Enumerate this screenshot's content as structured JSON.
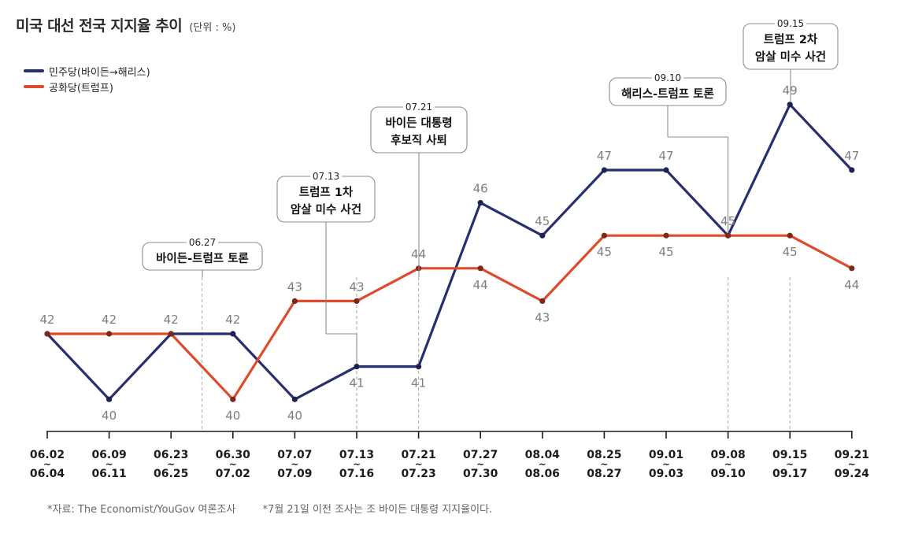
{
  "title": "미국 대선 전국 지지율 추이",
  "unit": "(단위 : %)",
  "legend": [
    {
      "label": "민주당(바이든→해리스)",
      "color": "#27306f"
    },
    {
      "label": "공화당(트럼프)",
      "color": "#dd4b2c"
    }
  ],
  "footer": {
    "source": "*자료: The Economist/YouGov 여론조사",
    "note": "*7월 21일 이전 조사는 조 바이든 대통령 지지율이다."
  },
  "chart_data": {
    "type": "line",
    "categories": [
      [
        "06.02",
        "06.04"
      ],
      [
        "06.09",
        "06.11"
      ],
      [
        "06.23",
        "06.25"
      ],
      [
        "06.30",
        "07.02"
      ],
      [
        "07.07",
        "07.09"
      ],
      [
        "07.13",
        "07.16"
      ],
      [
        "07.21",
        "07.23"
      ],
      [
        "07.27",
        "07.30"
      ],
      [
        "08.04",
        "08.06"
      ],
      [
        "08.25",
        "08.27"
      ],
      [
        "09.01",
        "09.03"
      ],
      [
        "09.08",
        "09.10"
      ],
      [
        "09.15",
        "09.17"
      ],
      [
        "09.21",
        "09.24"
      ]
    ],
    "series": [
      {
        "name": "민주당(바이든→해리스)",
        "color": "#27306f",
        "values": [
          42,
          40,
          42,
          42,
          40,
          41,
          41,
          46,
          45,
          47,
          47,
          45,
          49,
          47
        ]
      },
      {
        "name": "공화당(트럼프)",
        "color": "#dd4b2c",
        "values": [
          42,
          42,
          42,
          40,
          43,
          43,
          44,
          44,
          43,
          45,
          45,
          45,
          45,
          44
        ]
      }
    ],
    "annotations": [
      {
        "date": "06.27",
        "lines": [
          "바이든-트럼프 토론"
        ]
      },
      {
        "date": "07.13",
        "lines": [
          "트럼프 1차",
          "암살 미수 사건"
        ]
      },
      {
        "date": "07.21",
        "lines": [
          "바이든 대통령",
          "후보직 사퇴"
        ]
      },
      {
        "date": "09.10",
        "lines": [
          "해리스-트럼프 토론"
        ]
      },
      {
        "date": "09.15",
        "lines": [
          "트럼프 2차",
          "암살 미수 사건"
        ]
      }
    ],
    "ylim": [
      39,
      50
    ],
    "grid": false
  }
}
